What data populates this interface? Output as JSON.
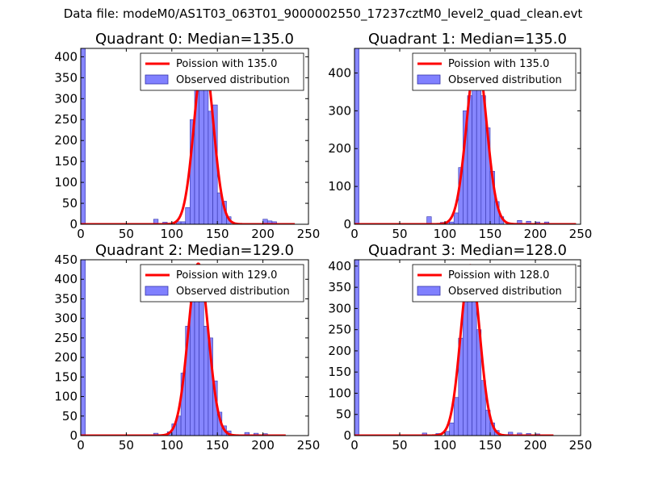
{
  "figure": {
    "suptitle": "Data file: modeM0/AS1T03_063T01_9000002550_17237cztM0_level2_quad_clean.evt",
    "colors": {
      "bar_fill": "#8080ff",
      "bar_edge": "#3333aa",
      "line": "#ff0000",
      "axes": "#000000"
    }
  },
  "chart_data": [
    {
      "type": "bar",
      "title": "Quadrant 0: Median=135.0",
      "legend": {
        "placement": "top-right",
        "entries": [
          "Poission with 135.0",
          "Observed distribution"
        ]
      },
      "xlim": [
        0,
        250
      ],
      "ylim": [
        0,
        420
      ],
      "xticks": [
        0,
        50,
        100,
        150,
        200,
        250
      ],
      "yticks": [
        0,
        50,
        100,
        150,
        200,
        250,
        300,
        350,
        400
      ],
      "bin_width": 5,
      "bins": [
        {
          "x": 0,
          "h": 420
        },
        {
          "x": 80,
          "h": 12
        },
        {
          "x": 90,
          "h": 5
        },
        {
          "x": 105,
          "h": 6
        },
        {
          "x": 110,
          "h": 6
        },
        {
          "x": 115,
          "h": 40
        },
        {
          "x": 120,
          "h": 250
        },
        {
          "x": 125,
          "h": 350
        },
        {
          "x": 130,
          "h": 395
        },
        {
          "x": 135,
          "h": 330
        },
        {
          "x": 140,
          "h": 270
        },
        {
          "x": 145,
          "h": 285
        },
        {
          "x": 150,
          "h": 75
        },
        {
          "x": 155,
          "h": 55
        },
        {
          "x": 160,
          "h": 18
        },
        {
          "x": 200,
          "h": 12
        },
        {
          "x": 205,
          "h": 8
        },
        {
          "x": 210,
          "h": 6
        }
      ],
      "poisson": {
        "mean": 135.0,
        "peak": 402,
        "sigma": 10.5,
        "x_range": [
          0,
          235
        ]
      }
    },
    {
      "type": "bar",
      "title": "Quadrant 1: Median=135.0",
      "legend": {
        "placement": "top-right",
        "entries": [
          "Poission with 135.0",
          "Observed distribution"
        ]
      },
      "xlim": [
        0,
        250
      ],
      "ylim": [
        0,
        465
      ],
      "xticks": [
        0,
        50,
        100,
        150,
        200,
        250
      ],
      "yticks": [
        0,
        100,
        200,
        300,
        400
      ],
      "bin_width": 5,
      "bins": [
        {
          "x": 0,
          "h": 465
        },
        {
          "x": 80,
          "h": 20
        },
        {
          "x": 95,
          "h": 5
        },
        {
          "x": 100,
          "h": 5
        },
        {
          "x": 105,
          "h": 6
        },
        {
          "x": 110,
          "h": 30
        },
        {
          "x": 115,
          "h": 150
        },
        {
          "x": 120,
          "h": 300
        },
        {
          "x": 125,
          "h": 340
        },
        {
          "x": 130,
          "h": 375
        },
        {
          "x": 135,
          "h": 395
        },
        {
          "x": 140,
          "h": 340
        },
        {
          "x": 145,
          "h": 255
        },
        {
          "x": 150,
          "h": 140
        },
        {
          "x": 155,
          "h": 60
        },
        {
          "x": 160,
          "h": 20
        },
        {
          "x": 180,
          "h": 10
        },
        {
          "x": 190,
          "h": 8
        },
        {
          "x": 200,
          "h": 6
        },
        {
          "x": 210,
          "h": 6
        }
      ],
      "poisson": {
        "mean": 135.0,
        "peak": 444,
        "sigma": 11,
        "x_range": [
          0,
          245
        ]
      }
    },
    {
      "type": "bar",
      "title": "Quadrant 2: Median=129.0",
      "legend": {
        "placement": "top-right",
        "entries": [
          "Poission with 129.0",
          "Observed distribution"
        ]
      },
      "xlim": [
        0,
        250
      ],
      "ylim": [
        0,
        450
      ],
      "xticks": [
        0,
        50,
        100,
        150,
        200,
        250
      ],
      "yticks": [
        0,
        50,
        100,
        150,
        200,
        250,
        300,
        350,
        400,
        450
      ],
      "bin_width": 5,
      "bins": [
        {
          "x": 0,
          "h": 450
        },
        {
          "x": 80,
          "h": 6
        },
        {
          "x": 95,
          "h": 10
        },
        {
          "x": 100,
          "h": 30
        },
        {
          "x": 105,
          "h": 50
        },
        {
          "x": 110,
          "h": 160
        },
        {
          "x": 115,
          "h": 280
        },
        {
          "x": 120,
          "h": 345
        },
        {
          "x": 125,
          "h": 410
        },
        {
          "x": 130,
          "h": 390
        },
        {
          "x": 135,
          "h": 280
        },
        {
          "x": 140,
          "h": 250
        },
        {
          "x": 145,
          "h": 140
        },
        {
          "x": 150,
          "h": 60
        },
        {
          "x": 155,
          "h": 25
        },
        {
          "x": 160,
          "h": 12
        },
        {
          "x": 180,
          "h": 8
        },
        {
          "x": 190,
          "h": 6
        },
        {
          "x": 200,
          "h": 5
        }
      ],
      "poisson": {
        "mean": 129.0,
        "peak": 440,
        "sigma": 11,
        "x_range": [
          0,
          225
        ]
      }
    },
    {
      "type": "bar",
      "title": "Quadrant 3: Median=128.0",
      "legend": {
        "placement": "top-right",
        "entries": [
          "Poission with 128.0",
          "Observed distribution"
        ]
      },
      "xlim": [
        0,
        250
      ],
      "ylim": [
        0,
        415
      ],
      "xticks": [
        0,
        50,
        100,
        150,
        200,
        250
      ],
      "yticks": [
        0,
        50,
        100,
        150,
        200,
        250,
        300,
        350,
        400
      ],
      "bin_width": 5,
      "bins": [
        {
          "x": 0,
          "h": 415
        },
        {
          "x": 75,
          "h": 6
        },
        {
          "x": 90,
          "h": 5
        },
        {
          "x": 100,
          "h": 10
        },
        {
          "x": 105,
          "h": 30
        },
        {
          "x": 110,
          "h": 90
        },
        {
          "x": 115,
          "h": 230
        },
        {
          "x": 120,
          "h": 330
        },
        {
          "x": 125,
          "h": 395
        },
        {
          "x": 130,
          "h": 385
        },
        {
          "x": 135,
          "h": 250
        },
        {
          "x": 140,
          "h": 130
        },
        {
          "x": 145,
          "h": 60
        },
        {
          "x": 150,
          "h": 30
        },
        {
          "x": 155,
          "h": 12
        },
        {
          "x": 170,
          "h": 8
        },
        {
          "x": 180,
          "h": 6
        },
        {
          "x": 190,
          "h": 5
        },
        {
          "x": 200,
          "h": 4
        }
      ],
      "poisson": {
        "mean": 128.0,
        "peak": 402,
        "sigma": 10.5,
        "x_range": [
          0,
          220
        ]
      }
    }
  ]
}
